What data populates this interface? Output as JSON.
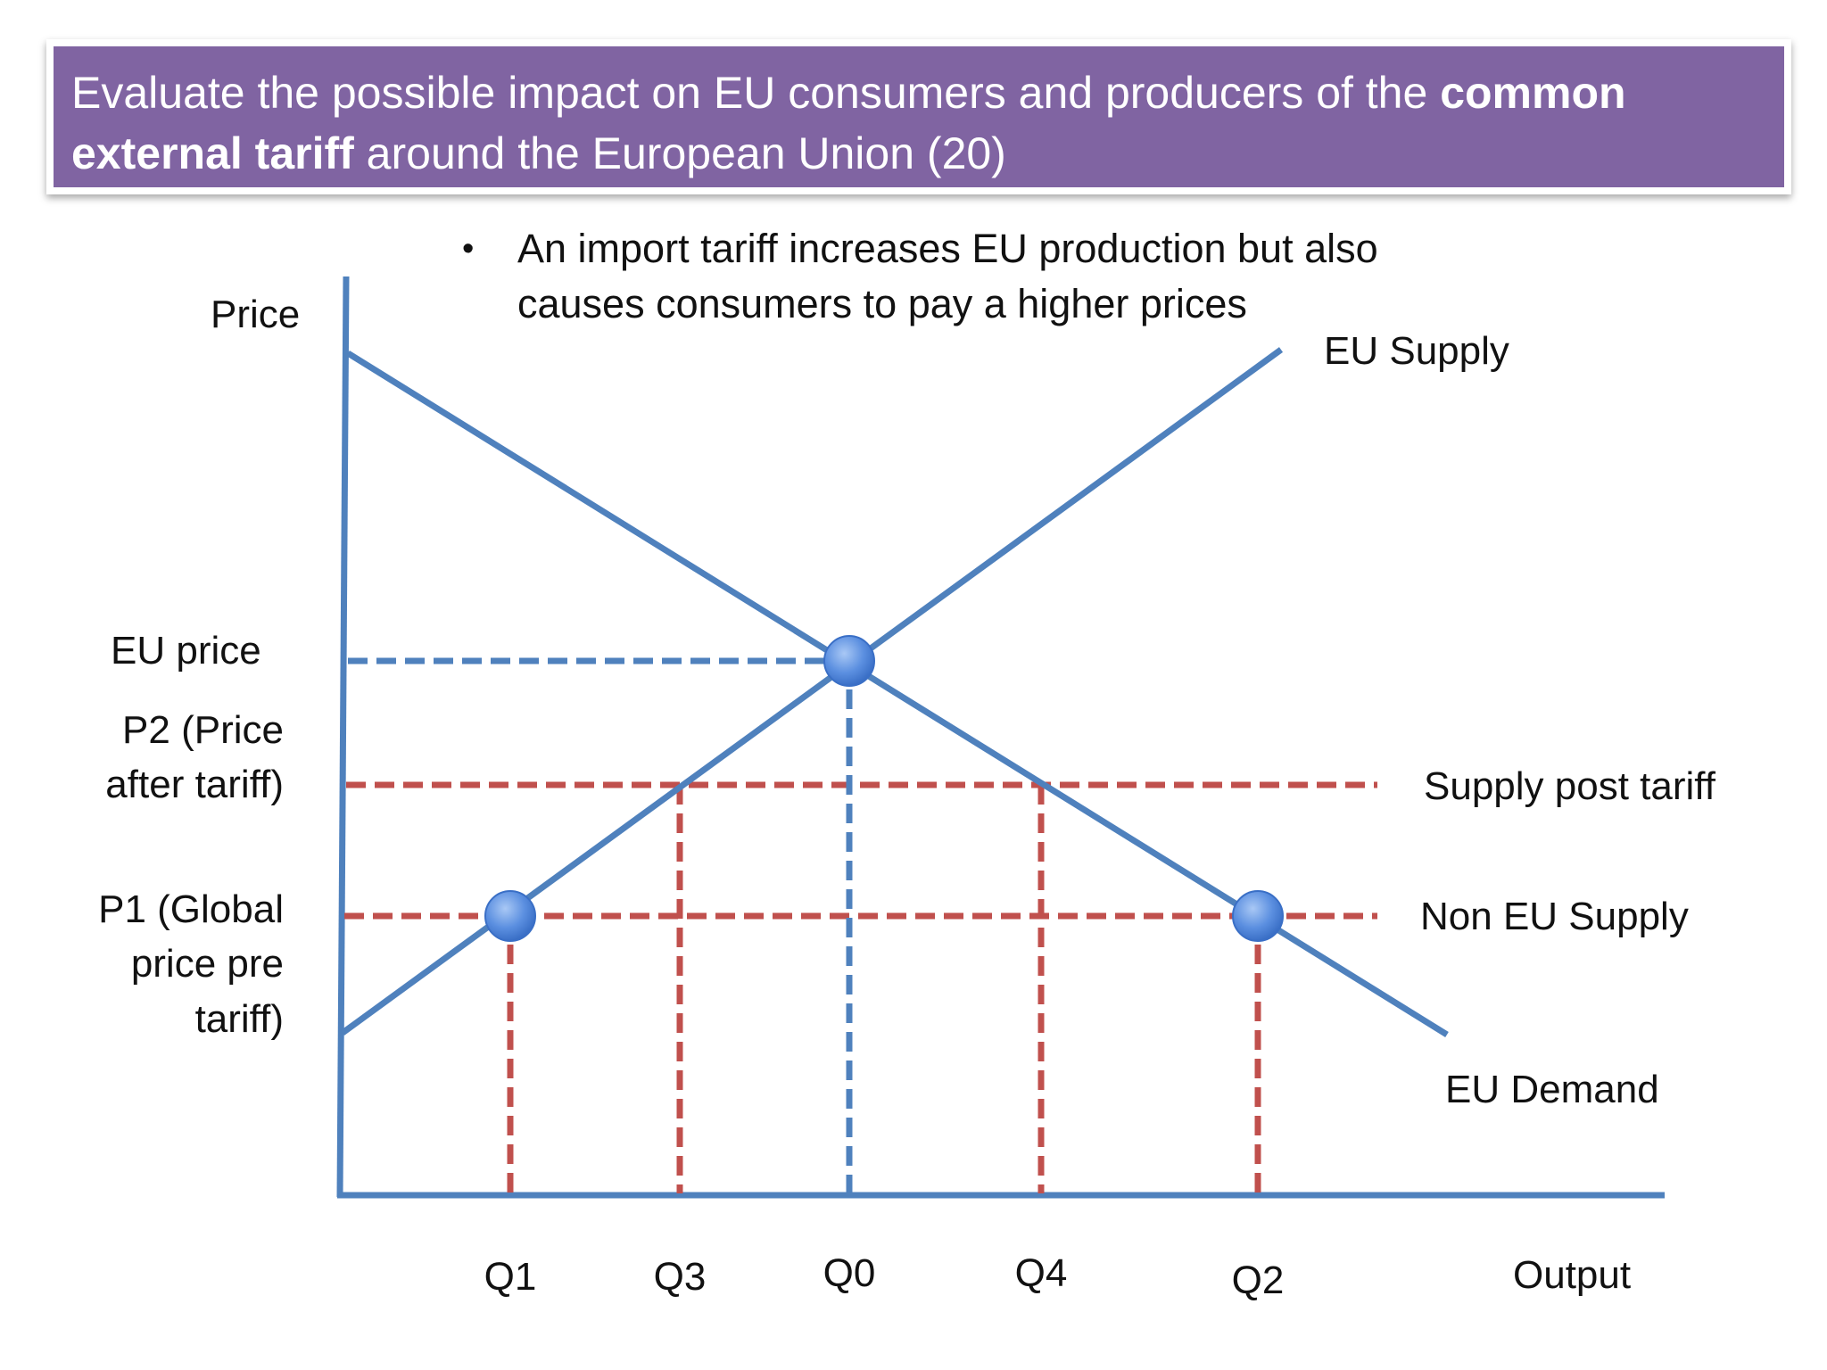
{
  "title": {
    "prefix": "Evaluate the possible impact on EU consumers and producers of the ",
    "bold1": "common",
    "bold2": "external tariff",
    "suffix": " around  the European Union (20)"
  },
  "bullet": {
    "line1": "An import tariff increases EU production but also",
    "line2": "causes consumers to pay a higher prices"
  },
  "axes": {
    "y_label": "Price",
    "x_label": "Output"
  },
  "curves": {
    "supply": "EU Supply",
    "demand": "EU Demand",
    "supply_post_tariff": "Supply post tariff",
    "non_eu_supply": "Non EU Supply"
  },
  "price_labels": {
    "eu_price": "EU price",
    "p2_line1": "P2 (Price",
    "p2_line2": "after tariff)",
    "p1_line1": "P1 (Global",
    "p1_line2": "price pre",
    "p1_line3": "tariff)"
  },
  "quantity_labels": {
    "q1": "Q1",
    "q3": "Q3",
    "q0": "Q0",
    "q4": "Q4",
    "q2": "Q2"
  },
  "colors": {
    "title_bg": "#8064a2",
    "curve_blue": "#4f81bd",
    "dashed_red": "#c0504d",
    "point_fill": "#5b8fe0"
  }
}
